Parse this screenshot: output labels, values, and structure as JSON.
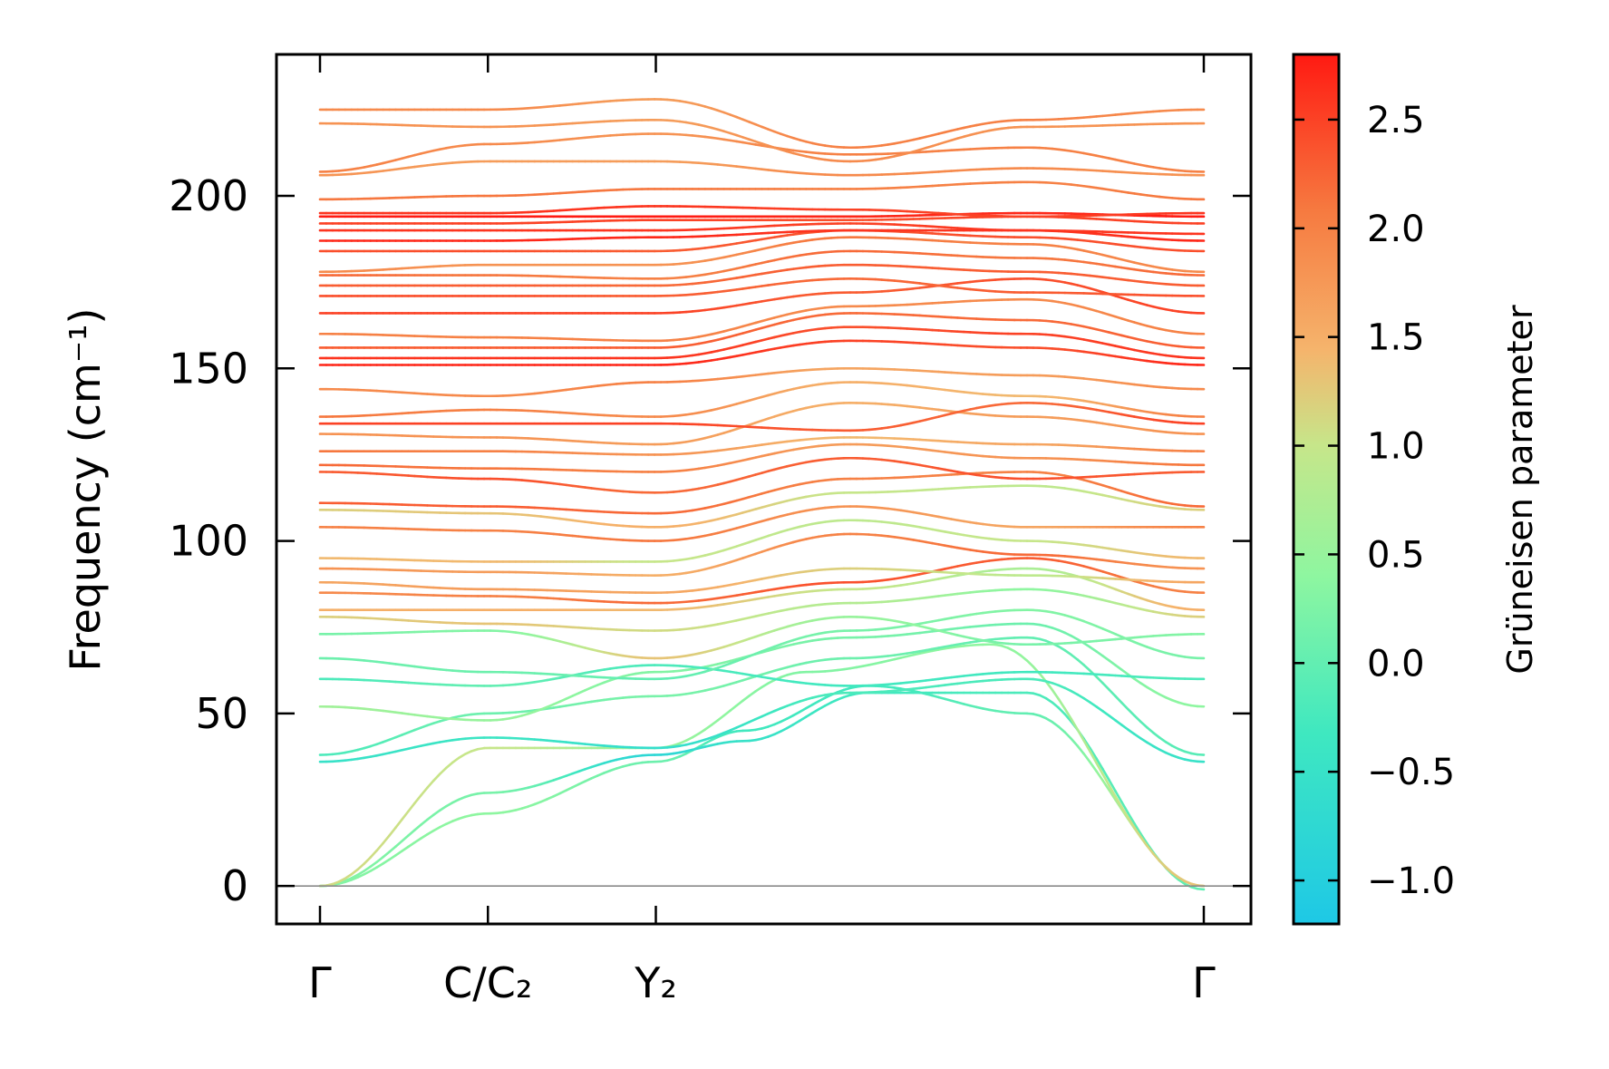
{
  "chart_data": {
    "type": "line",
    "title": "",
    "xlabel": "",
    "ylabel": "Frequency (cm⁻¹)",
    "ylim": [
      -11,
      241
    ],
    "yticks": [
      0,
      50,
      100,
      150,
      200
    ],
    "ytick_labels": [
      "0",
      "50",
      "100",
      "150",
      "200"
    ],
    "path_positions": [
      0,
      0.19,
      0.38,
      1.0
    ],
    "path_labels": [
      "Γ",
      "C/C₂",
      "Y₂",
      "Γ"
    ],
    "colorbar": {
      "label": "Grüneisen parameter",
      "range": [
        -1.2,
        2.8
      ],
      "ticks": [
        -1.0,
        -0.5,
        0.0,
        0.5,
        1.0,
        1.5,
        2.0,
        2.5
      ],
      "tick_labels": [
        "−1.0",
        "−0.5",
        "0.0",
        "0.5",
        "1.0",
        "1.5",
        "2.0",
        "2.5"
      ],
      "colormap": "rainbow"
    },
    "series": [
      {
        "name": "acoustic-1",
        "x": [
          0,
          0.19,
          0.38,
          0.48,
          0.62,
          0.8,
          1.0
        ],
        "y": [
          0,
          21,
          36,
          45,
          58,
          50,
          0
        ],
        "g": [
          0.3,
          0.4,
          0.1,
          -0.3,
          -0.3,
          0.0,
          1.3
        ]
      },
      {
        "name": "acoustic-2",
        "x": [
          0,
          0.19,
          0.38,
          0.48,
          0.62,
          0.8,
          1.0
        ],
        "y": [
          0,
          27,
          38,
          42,
          56,
          56,
          -1
        ],
        "g": [
          0.3,
          0.2,
          -0.8,
          -0.5,
          -0.3,
          -0.2,
          0.0
        ]
      },
      {
        "name": "acoustic-3",
        "x": [
          0,
          0.19,
          0.38,
          0.55,
          0.76,
          1.0
        ],
        "y": [
          0,
          40,
          40,
          62,
          70,
          0
        ],
        "g": [
          1.1,
          1.0,
          0.5,
          0.3,
          0.4,
          1.3
        ]
      },
      {
        "name": "optical-01",
        "x": [
          0,
          0.19,
          0.38,
          0.6,
          0.8,
          1.0
        ],
        "y": [
          36,
          43,
          40,
          56,
          60,
          36
        ],
        "g": [
          -0.5,
          -0.4,
          -0.6,
          -0.2,
          -0.2,
          -0.5
        ]
      },
      {
        "name": "optical-02",
        "x": [
          0,
          0.19,
          0.38,
          0.6,
          0.8,
          1.0
        ],
        "y": [
          38,
          50,
          55,
          66,
          72,
          38
        ],
        "g": [
          -0.2,
          0.1,
          0.2,
          0.1,
          0.0,
          -0.1
        ]
      },
      {
        "name": "optical-03",
        "x": [
          0,
          0.19,
          0.38,
          0.6,
          0.8,
          1.0
        ],
        "y": [
          52,
          48,
          62,
          72,
          76,
          52
        ],
        "g": [
          0.6,
          0.5,
          0.3,
          0.2,
          0.1,
          0.4
        ]
      },
      {
        "name": "optical-04",
        "x": [
          0,
          0.19,
          0.38,
          0.6,
          0.8,
          1.0
        ],
        "y": [
          60,
          58,
          64,
          58,
          62,
          60
        ],
        "g": [
          -0.2,
          0.0,
          -0.2,
          -0.3,
          -0.3,
          -0.2
        ]
      },
      {
        "name": "optical-05",
        "x": [
          0,
          0.19,
          0.38,
          0.6,
          0.8,
          1.0
        ],
        "y": [
          66,
          62,
          60,
          74,
          80,
          66
        ],
        "g": [
          0.1,
          0.1,
          0.0,
          0.2,
          0.3,
          0.2
        ]
      },
      {
        "name": "optical-06",
        "x": [
          0,
          0.19,
          0.38,
          0.6,
          0.8,
          1.0
        ],
        "y": [
          73,
          74,
          66,
          78,
          70,
          73
        ],
        "g": [
          0.2,
          0.3,
          1.3,
          0.5,
          0.2,
          0.3
        ]
      },
      {
        "name": "optical-07",
        "x": [
          0,
          0.19,
          0.38,
          0.6,
          0.8,
          1.0
        ],
        "y": [
          78,
          76,
          74,
          82,
          86,
          78
        ],
        "g": [
          1.2,
          1.3,
          1.1,
          0.8,
          0.4,
          1.2
        ]
      },
      {
        "name": "optical-08",
        "x": [
          0,
          0.19,
          0.38,
          0.6,
          0.8,
          1.0
        ],
        "y": [
          80,
          80,
          80,
          86,
          92,
          80
        ],
        "g": [
          1.5,
          1.5,
          1.4,
          1.0,
          0.7,
          1.5
        ]
      },
      {
        "name": "optical-09",
        "x": [
          0,
          0.19,
          0.38,
          0.6,
          0.8,
          1.0
        ],
        "y": [
          85,
          84,
          82,
          88,
          95,
          85
        ],
        "g": [
          1.9,
          2.0,
          2.2,
          2.4,
          2.3,
          2.0
        ]
      },
      {
        "name": "optical-10",
        "x": [
          0,
          0.19,
          0.38,
          0.6,
          0.8,
          1.0
        ],
        "y": [
          88,
          86,
          85,
          92,
          90,
          88
        ],
        "g": [
          1.6,
          1.7,
          1.6,
          1.2,
          0.9,
          1.6
        ]
      },
      {
        "name": "optical-11",
        "x": [
          0,
          0.19,
          0.38,
          0.6,
          0.8,
          1.0
        ],
        "y": [
          92,
          91,
          90,
          102,
          96,
          92
        ],
        "g": [
          1.8,
          1.7,
          1.5,
          2.0,
          2.2,
          1.8
        ]
      },
      {
        "name": "optical-12",
        "x": [
          0,
          0.19,
          0.38,
          0.6,
          0.8,
          1.0
        ],
        "y": [
          95,
          94,
          94,
          106,
          100,
          95
        ],
        "g": [
          1.4,
          1.4,
          1.0,
          0.9,
          1.0,
          1.4
        ]
      },
      {
        "name": "optical-13",
        "x": [
          0,
          0.19,
          0.38,
          0.6,
          0.8,
          1.0
        ],
        "y": [
          104,
          103,
          100,
          110,
          104,
          104
        ],
        "g": [
          2.0,
          2.0,
          2.1,
          1.8,
          1.6,
          2.0
        ]
      },
      {
        "name": "optical-14",
        "x": [
          0,
          0.19,
          0.38,
          0.6,
          0.8,
          1.0
        ],
        "y": [
          109,
          108,
          104,
          114,
          116,
          109
        ],
        "g": [
          1.2,
          1.3,
          1.5,
          1.0,
          0.9,
          1.2
        ]
      },
      {
        "name": "optical-15",
        "x": [
          0,
          0.19,
          0.38,
          0.6,
          0.8,
          1.0
        ],
        "y": [
          111,
          110,
          108,
          118,
          120,
          110
        ],
        "g": [
          2.3,
          2.3,
          2.2,
          2.0,
          2.0,
          2.2
        ]
      },
      {
        "name": "optical-16",
        "x": [
          0,
          0.19,
          0.38,
          0.6,
          0.8,
          1.0
        ],
        "y": [
          120,
          118,
          114,
          124,
          118,
          120
        ],
        "g": [
          2.3,
          2.4,
          2.2,
          2.3,
          2.4,
          2.3
        ]
      },
      {
        "name": "optical-17",
        "x": [
          0,
          0.19,
          0.38,
          0.6,
          0.8,
          1.0
        ],
        "y": [
          122,
          121,
          120,
          128,
          124,
          122
        ],
        "g": [
          2.2,
          2.1,
          2.0,
          1.7,
          1.8,
          2.1
        ]
      },
      {
        "name": "optical-18",
        "x": [
          0,
          0.19,
          0.38,
          0.6,
          0.8,
          1.0
        ],
        "y": [
          126,
          126,
          125,
          130,
          128,
          126
        ],
        "g": [
          2.1,
          2.0,
          1.8,
          1.4,
          1.6,
          2.0
        ]
      },
      {
        "name": "optical-19",
        "x": [
          0,
          0.19,
          0.38,
          0.6,
          0.8,
          1.0
        ],
        "y": [
          131,
          130,
          128,
          140,
          136,
          131
        ],
        "g": [
          1.8,
          1.8,
          1.7,
          1.5,
          1.7,
          1.8
        ]
      },
      {
        "name": "optical-20",
        "x": [
          0,
          0.19,
          0.38,
          0.6,
          0.8,
          1.0
        ],
        "y": [
          134,
          134,
          134,
          132,
          140,
          134
        ],
        "g": [
          2.5,
          2.5,
          2.5,
          2.3,
          2.2,
          2.5
        ]
      },
      {
        "name": "optical-21",
        "x": [
          0,
          0.19,
          0.38,
          0.6,
          0.8,
          1.0
        ],
        "y": [
          136,
          138,
          136,
          146,
          142,
          136
        ],
        "g": [
          2.1,
          2.0,
          1.9,
          1.5,
          1.4,
          2.0
        ]
      },
      {
        "name": "optical-22",
        "x": [
          0,
          0.19,
          0.38,
          0.6,
          0.8,
          1.0
        ],
        "y": [
          144,
          142,
          146,
          150,
          148,
          144
        ],
        "g": [
          1.9,
          1.9,
          2.0,
          1.6,
          1.7,
          1.9
        ]
      },
      {
        "name": "optical-23",
        "x": [
          0,
          0.19,
          0.38,
          0.6,
          0.8,
          1.0
        ],
        "y": [
          151,
          151,
          151,
          158,
          156,
          151
        ],
        "g": [
          2.7,
          2.7,
          2.7,
          2.5,
          2.4,
          2.7
        ]
      },
      {
        "name": "optical-24",
        "x": [
          0,
          0.19,
          0.38,
          0.6,
          0.8,
          1.0
        ],
        "y": [
          153,
          153,
          153,
          162,
          160,
          153
        ],
        "g": [
          2.6,
          2.6,
          2.6,
          2.4,
          2.5,
          2.6
        ]
      },
      {
        "name": "optical-25",
        "x": [
          0,
          0.19,
          0.38,
          0.6,
          0.8,
          1.0
        ],
        "y": [
          156,
          156,
          156,
          166,
          164,
          156
        ],
        "g": [
          2.3,
          2.3,
          2.3,
          2.2,
          2.2,
          2.3
        ]
      },
      {
        "name": "optical-26",
        "x": [
          0,
          0.19,
          0.38,
          0.6,
          0.8,
          1.0
        ],
        "y": [
          160,
          159,
          158,
          168,
          170,
          160
        ],
        "g": [
          2.0,
          2.0,
          2.0,
          1.9,
          1.9,
          2.0
        ]
      },
      {
        "name": "optical-27",
        "x": [
          0,
          0.19,
          0.38,
          0.6,
          0.8,
          1.0
        ],
        "y": [
          166,
          166,
          166,
          172,
          176,
          166
        ],
        "g": [
          2.5,
          2.5,
          2.5,
          2.3,
          2.4,
          2.5
        ]
      },
      {
        "name": "optical-28",
        "x": [
          0,
          0.19,
          0.38,
          0.6,
          0.8,
          1.0
        ],
        "y": [
          171,
          171,
          171,
          176,
          172,
          171
        ],
        "g": [
          2.4,
          2.4,
          2.3,
          2.2,
          2.3,
          2.4
        ]
      },
      {
        "name": "optical-29",
        "x": [
          0,
          0.19,
          0.38,
          0.6,
          0.8,
          1.0
        ],
        "y": [
          174,
          174,
          174,
          180,
          178,
          174
        ],
        "g": [
          2.3,
          2.3,
          2.2,
          2.3,
          2.3,
          2.3
        ]
      },
      {
        "name": "optical-30",
        "x": [
          0,
          0.19,
          0.38,
          0.6,
          0.8,
          1.0
        ],
        "y": [
          177,
          177,
          176,
          184,
          182,
          177
        ],
        "g": [
          2.2,
          2.1,
          2.0,
          2.2,
          2.1,
          2.2
        ]
      },
      {
        "name": "optical-31",
        "x": [
          0,
          0.19,
          0.38,
          0.6,
          0.8,
          1.0
        ],
        "y": [
          178,
          180,
          180,
          188,
          186,
          178
        ],
        "g": [
          1.9,
          1.8,
          1.8,
          2.1,
          2.0,
          1.9
        ]
      },
      {
        "name": "optical-32",
        "x": [
          0,
          0.19,
          0.38,
          0.6,
          0.8,
          1.0
        ],
        "y": [
          184,
          184,
          184,
          190,
          188,
          184
        ],
        "g": [
          2.4,
          2.4,
          2.3,
          2.4,
          2.4,
          2.4
        ]
      },
      {
        "name": "optical-33",
        "x": [
          0,
          0.19,
          0.38,
          0.6,
          0.8,
          1.0
        ],
        "y": [
          187,
          187,
          188,
          190,
          190,
          187
        ],
        "g": [
          2.7,
          2.7,
          2.7,
          2.6,
          2.6,
          2.7
        ]
      },
      {
        "name": "optical-34",
        "x": [
          0,
          0.19,
          0.38,
          0.6,
          0.8,
          1.0
        ],
        "y": [
          190,
          190,
          190,
          192,
          190,
          189
        ],
        "g": [
          2.6,
          2.6,
          2.6,
          2.5,
          2.6,
          2.6
        ]
      },
      {
        "name": "optical-35",
        "x": [
          0,
          0.19,
          0.38,
          0.6,
          0.8,
          1.0
        ],
        "y": [
          192,
          192,
          193,
          193,
          194,
          192
        ],
        "g": [
          2.5,
          2.5,
          2.5,
          2.4,
          2.5,
          2.5
        ]
      },
      {
        "name": "optical-36",
        "x": [
          0,
          0.19,
          0.38,
          0.6,
          0.8,
          1.0
        ],
        "y": [
          194,
          194,
          194,
          194,
          195,
          194
        ],
        "g": [
          2.8,
          2.8,
          2.8,
          2.7,
          2.7,
          2.8
        ]
      },
      {
        "name": "optical-37",
        "x": [
          0,
          0.19,
          0.38,
          0.6,
          0.8,
          1.0
        ],
        "y": [
          195,
          195,
          197,
          196,
          194,
          195
        ],
        "g": [
          2.6,
          2.6,
          2.6,
          2.5,
          2.5,
          2.6
        ]
      },
      {
        "name": "optical-38",
        "x": [
          0,
          0.19,
          0.38,
          0.6,
          0.8,
          1.0
        ],
        "y": [
          199,
          200,
          202,
          202,
          204,
          199
        ],
        "g": [
          2.1,
          2.1,
          2.1,
          2.0,
          2.0,
          2.1
        ]
      },
      {
        "name": "optical-39",
        "x": [
          0,
          0.19,
          0.38,
          0.6,
          0.8,
          1.0
        ],
        "y": [
          206,
          210,
          210,
          206,
          208,
          206
        ],
        "g": [
          1.8,
          1.7,
          1.7,
          1.9,
          1.9,
          1.8
        ]
      },
      {
        "name": "optical-40",
        "x": [
          0,
          0.19,
          0.38,
          0.6,
          0.8,
          1.0
        ],
        "y": [
          207,
          215,
          218,
          212,
          214,
          207
        ],
        "g": [
          2.0,
          1.9,
          1.8,
          2.0,
          2.0,
          2.0
        ]
      },
      {
        "name": "optical-41",
        "x": [
          0,
          0.19,
          0.38,
          0.6,
          0.8,
          1.0
        ],
        "y": [
          221,
          220,
          222,
          210,
          220,
          221
        ],
        "g": [
          1.8,
          1.8,
          1.7,
          1.9,
          1.8,
          1.8
        ]
      },
      {
        "name": "optical-42",
        "x": [
          0,
          0.19,
          0.38,
          0.6,
          0.8,
          1.0
        ],
        "y": [
          225,
          225,
          228,
          214,
          222,
          225
        ],
        "g": [
          1.9,
          1.9,
          1.7,
          2.0,
          2.0,
          1.9
        ]
      }
    ]
  }
}
